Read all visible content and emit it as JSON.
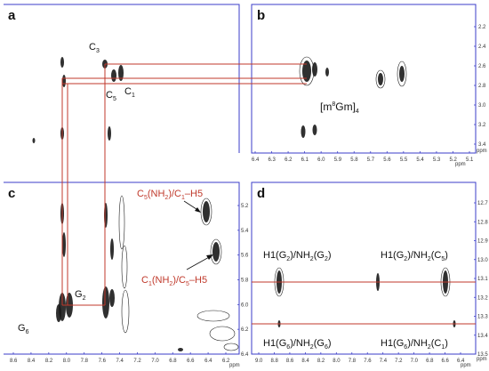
{
  "panels": {
    "a": {
      "letter": "a"
    },
    "b": {
      "letter": "b",
      "compound": {
        "base": "[m",
        "sup": "8",
        "mid": "Gm]",
        "sub": "4"
      },
      "y_ticks": [
        "2.2",
        "2.4",
        "2.6",
        "2.8",
        "3.0",
        "3.2",
        "3.4"
      ],
      "x_ticks": [
        "6.4",
        "6.3",
        "6.2",
        "6.1",
        "6.0",
        "5.9",
        "5.8",
        "5.7",
        "5.6",
        "5.5",
        "5.4",
        "5.3",
        "5.2",
        "5.1"
      ],
      "unit": "ppm"
    },
    "c": {
      "letter": "c",
      "y_ticks": [
        "5.2",
        "5.4",
        "5.6",
        "5.8",
        "6.0",
        "6.2",
        "6.4"
      ],
      "x_ticks": [
        "8.6",
        "8.4",
        "8.2",
        "8.0",
        "7.8",
        "7.6",
        "7.4",
        "7.2",
        "7.0",
        "6.8",
        "6.6",
        "6.4",
        "6.2"
      ],
      "unit": "ppm",
      "annotation_top": {
        "t1": "C",
        "s1": "5",
        "t2": "(NH",
        "s2": "2",
        "t3": ")/C",
        "s3": "1",
        "t4": "–H5"
      },
      "annotation_bottom": {
        "t1": "C",
        "s1": "1",
        "t2": "(NH",
        "s2": "2",
        "t3": ")/C",
        "s3": "5",
        "t4": "–H5"
      }
    },
    "d": {
      "letter": "d",
      "y_ticks": [
        "12.7",
        "12.8",
        "12.9",
        "13.0",
        "13.1",
        "13.2",
        "13.3",
        "13.4",
        "13.5"
      ],
      "x_ticks": [
        "9.0",
        "8.8",
        "8.6",
        "8.4",
        "8.2",
        "8.0",
        "7.8",
        "7.6",
        "7.4",
        "7.2",
        "7.0",
        "6.8",
        "6.6",
        "6.4"
      ],
      "unit": "ppm",
      "label_tl": {
        "a": "H1(G",
        "b": "2",
        "c": ")/NH",
        "d": "2",
        "e": "(G",
        "f": "2",
        "g": ")"
      },
      "label_tr": {
        "a": "H1(G",
        "b": "2",
        "c": ")/NH",
        "d": "2",
        "e": "(C",
        "f": "5",
        "g": ")"
      },
      "label_bl": {
        "a": "H1(G",
        "b": "6",
        "c": ")/NH",
        "d": "2",
        "e": "(G",
        "f": "6",
        "g": ")"
      },
      "label_br": {
        "a": "H1(G",
        "b": "6",
        "c": ")/NH",
        "d": "2",
        "e": "(C",
        "f": "1",
        "g": ")"
      }
    }
  },
  "labels": {
    "c3": {
      "t": "C",
      "s": "3"
    },
    "c5": {
      "t": "C",
      "s": "5"
    },
    "c1": {
      "t": "C",
      "s": "1"
    },
    "g2": {
      "t": "G",
      "s": "2"
    },
    "g6": {
      "t": "G",
      "s": "6"
    }
  },
  "colors": {
    "axis": "#3b3ec8",
    "guide": "#c0392b",
    "peak": "#1a1a1a"
  }
}
